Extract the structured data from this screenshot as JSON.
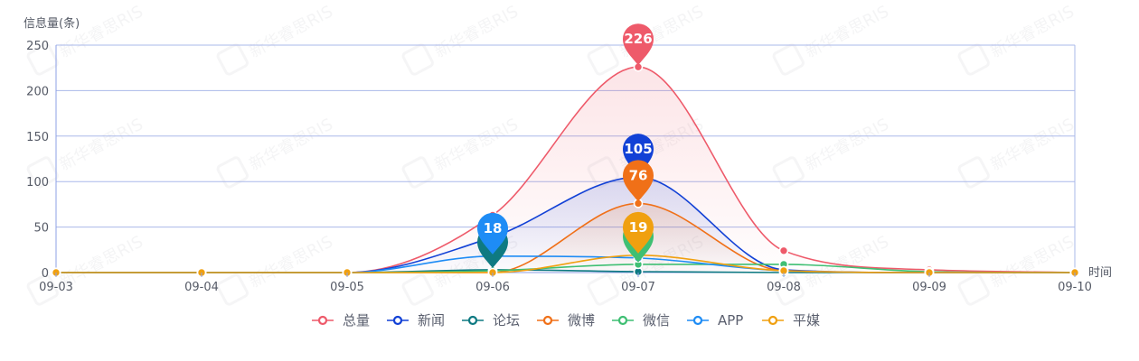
{
  "chart_data": {
    "type": "line",
    "ylabel": "信息量(条)",
    "xlabel": "时间",
    "categories": [
      "09-03",
      "09-04",
      "09-05",
      "09-06",
      "09-07",
      "09-08",
      "09-09",
      "09-10"
    ],
    "ylim": [
      0,
      250
    ],
    "yticks": [
      0,
      50,
      100,
      150,
      200,
      250
    ],
    "grid": true,
    "legend_position": "bottom",
    "series": [
      {
        "name": "总量",
        "color": "#ee5a6a",
        "values": [
          0,
          0,
          0,
          63,
          226,
          24,
          3,
          0
        ],
        "area": true,
        "pin": {
          "index": 4,
          "label": "226"
        }
      },
      {
        "name": "新闻",
        "color": "#1241d6",
        "values": [
          0,
          0,
          0,
          39,
          105,
          3,
          0,
          0
        ],
        "area": true,
        "pin": {
          "index": 4,
          "label": "105"
        }
      },
      {
        "name": "论坛",
        "color": "#0e7a82",
        "values": [
          0,
          0,
          0,
          3,
          1,
          0,
          0,
          0
        ],
        "area": false,
        "pin": {
          "index": 3,
          "label": ""
        }
      },
      {
        "name": "微博",
        "color": "#f07018",
        "values": [
          0,
          0,
          0,
          0,
          76,
          2,
          0,
          0
        ],
        "area": true,
        "pin": {
          "index": 4,
          "label": "76"
        }
      },
      {
        "name": "微信",
        "color": "#3fbf73",
        "values": [
          0,
          0,
          0,
          2,
          9,
          9,
          1,
          0
        ],
        "area": false,
        "pin": {
          "index": 4,
          "label": ""
        }
      },
      {
        "name": "APP",
        "color": "#1e8cf5",
        "values": [
          0,
          0,
          0,
          18,
          16,
          2,
          0,
          0
        ],
        "area": false,
        "pin": {
          "index": 3,
          "label": "18"
        }
      },
      {
        "name": "平媒",
        "color": "#f0a010",
        "values": [
          0,
          0,
          0,
          0,
          19,
          2,
          0,
          0
        ],
        "area": false,
        "pin": {
          "index": 4,
          "label": "19"
        }
      }
    ]
  },
  "watermark": {
    "text": "新华睿思RIS"
  }
}
